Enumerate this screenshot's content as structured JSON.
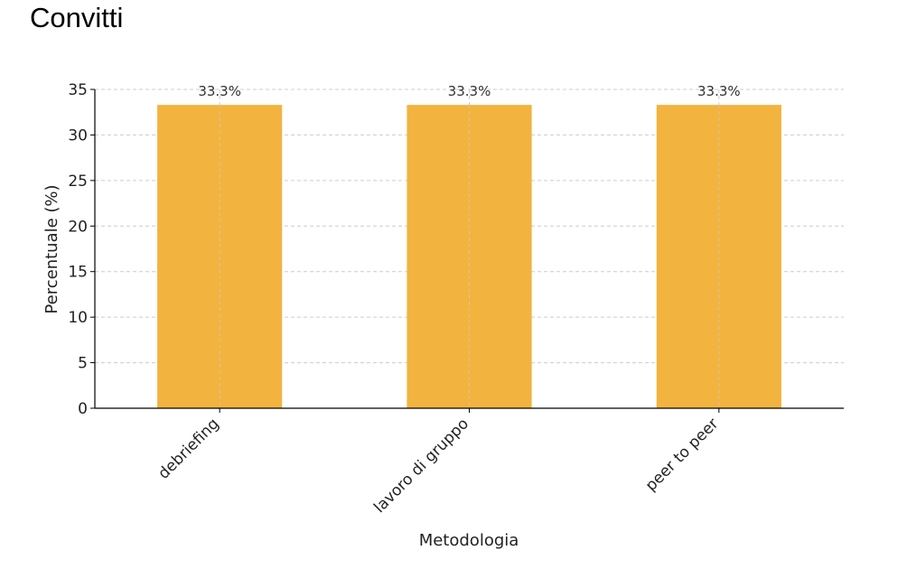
{
  "page": {
    "title": "Convitti"
  },
  "chart_data": {
    "type": "bar",
    "title": "Convitti",
    "xlabel": "Metodologia",
    "ylabel": "Percentuale (%)",
    "categories": [
      "debriefing",
      "lavoro di gruppo",
      "peer to peer"
    ],
    "values": [
      33.3,
      33.3,
      33.3
    ],
    "data_labels": [
      "33.3%",
      "33.3%",
      "33.3%"
    ],
    "ylim": [
      0,
      35
    ],
    "yticks": [
      0,
      5,
      10,
      15,
      20,
      25,
      30,
      35
    ],
    "grid": true,
    "bar_color": "#F2B33F",
    "gridline_color": "#cccccc",
    "axis_color": "#000000"
  }
}
